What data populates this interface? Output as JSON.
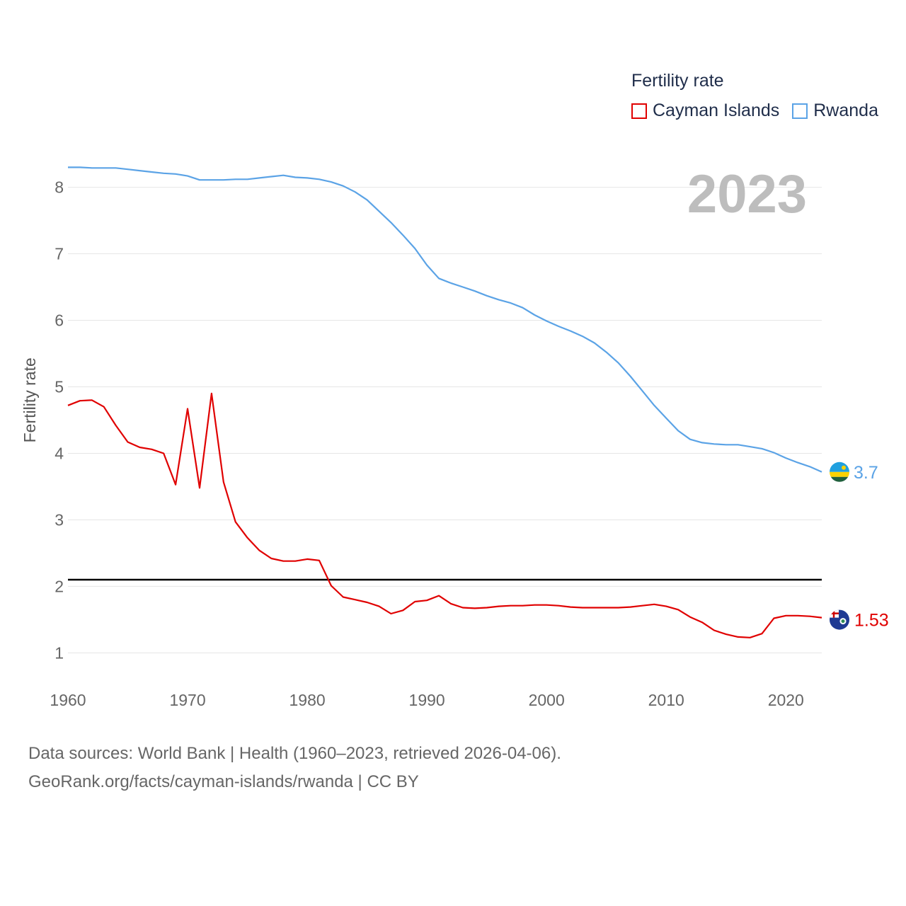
{
  "chart_data": {
    "type": "line",
    "legend_title": "Fertility rate",
    "ylabel": "Fertility rate",
    "year_label": "2023",
    "xlim": [
      1960,
      2023
    ],
    "ylim": [
      0.6,
      8.9
    ],
    "x_ticks": [
      1960,
      1970,
      1980,
      1990,
      2000,
      2010,
      2020
    ],
    "y_ticks": [
      1,
      2,
      3,
      4,
      5,
      6,
      7,
      8
    ],
    "reference_line": 2.1,
    "colors": {
      "cayman": "#e00000",
      "rwanda": "#5ba3e6",
      "reference": "#000000",
      "grid": "#e6e6e6"
    },
    "series": [
      {
        "name": "Cayman Islands",
        "end_label": "1.53",
        "flag_icon": "cayman-flag-icon",
        "values": [
          4.72,
          4.79,
          4.8,
          4.7,
          4.42,
          4.17,
          4.09,
          4.06,
          4.0,
          3.53,
          4.67,
          3.48,
          4.9,
          3.57,
          2.97,
          2.73,
          2.54,
          2.42,
          2.38,
          2.38,
          2.41,
          2.39,
          2.01,
          1.84,
          1.8,
          1.76,
          1.7,
          1.59,
          1.64,
          1.77,
          1.79,
          1.86,
          1.74,
          1.68,
          1.67,
          1.68,
          1.7,
          1.71,
          1.71,
          1.72,
          1.72,
          1.71,
          1.69,
          1.68,
          1.68,
          1.68,
          1.68,
          1.69,
          1.71,
          1.73,
          1.7,
          1.65,
          1.54,
          1.46,
          1.34,
          1.28,
          1.24,
          1.23,
          1.29,
          1.52,
          1.56,
          1.56,
          1.55,
          1.53
        ]
      },
      {
        "name": "Rwanda",
        "end_label": "3.7",
        "flag_icon": "rwanda-flag-icon",
        "values": [
          8.3,
          8.3,
          8.29,
          8.29,
          8.29,
          8.27,
          8.25,
          8.23,
          8.21,
          8.2,
          8.17,
          8.11,
          8.11,
          8.11,
          8.12,
          8.12,
          8.14,
          8.16,
          8.18,
          8.15,
          8.14,
          8.12,
          8.08,
          8.02,
          7.93,
          7.81,
          7.64,
          7.47,
          7.28,
          7.08,
          6.83,
          6.63,
          6.56,
          6.5,
          6.44,
          6.37,
          6.31,
          6.26,
          6.19,
          6.08,
          5.99,
          5.91,
          5.84,
          5.76,
          5.66,
          5.52,
          5.36,
          5.16,
          4.94,
          4.72,
          4.53,
          4.34,
          4.21,
          4.16,
          4.14,
          4.13,
          4.13,
          4.1,
          4.07,
          4.01,
          3.93,
          3.86,
          3.8,
          3.72
        ]
      }
    ]
  },
  "footer": {
    "sources": "Data sources: World Bank | Health (1960–2023, retrieved 2026-04-06).",
    "credit": "GeoRank.org/facts/cayman-islands/rwanda | CC BY"
  }
}
